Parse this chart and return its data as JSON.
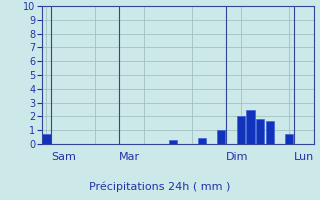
{
  "xlabel": "Précipitations 24h ( mm )",
  "ylim": [
    0,
    10
  ],
  "yticks": [
    0,
    1,
    2,
    3,
    4,
    5,
    6,
    7,
    8,
    9,
    10
  ],
  "background_color": "#cce8e8",
  "bar_color": "#1133bb",
  "bar_edge_color": "#3355dd",
  "n_bars": 28,
  "bar_values": [
    0.7,
    0,
    0,
    0,
    0,
    0,
    0,
    0,
    0,
    0,
    0,
    0,
    0,
    0.3,
    0,
    0,
    0.4,
    0,
    1.0,
    0,
    2.0,
    2.5,
    1.8,
    1.7,
    0,
    0.7,
    0,
    0
  ],
  "day_labels": [
    "Sam",
    "Mar",
    "Dim",
    "Lun"
  ],
  "day_positions": [
    1,
    8,
    19,
    26
  ],
  "grid_color": "#99bbbb",
  "axis_color": "#334499",
  "tick_color": "#2233aa",
  "label_color": "#2233aa",
  "title_color": "#2233aa",
  "xlabel_fontsize": 8,
  "tick_fontsize": 7,
  "day_label_fontsize": 8
}
